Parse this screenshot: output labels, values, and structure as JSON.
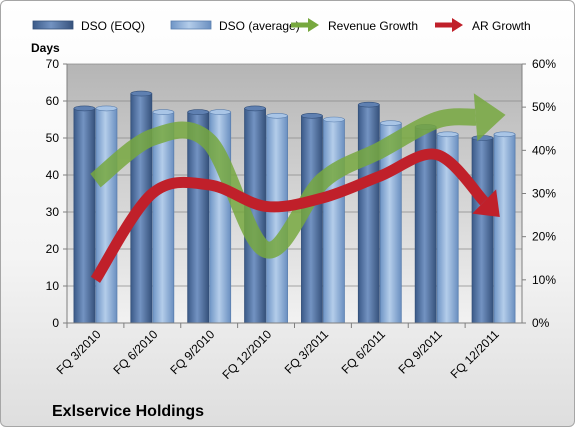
{
  "chart_data": {
    "type": "bar",
    "title": "",
    "company_label": "Exlservice Holdings",
    "ylabel_left": "Days",
    "ylim_left": [
      0,
      70
    ],
    "yticks_left": [
      0,
      10,
      20,
      30,
      40,
      50,
      60,
      70
    ],
    "ylim_right": [
      0,
      60
    ],
    "yticks_right": [
      0,
      10,
      20,
      30,
      40,
      50,
      60
    ],
    "right_tick_suffix": "%",
    "legend_position": "top",
    "categories": [
      "FQ 3/2010",
      "FQ 6/2010",
      "FQ 9/2010",
      "FQ 12/2010",
      "FQ 3/2011",
      "FQ 6/2011",
      "FQ 9/2011",
      "FQ 12/2011"
    ],
    "series": [
      {
        "name": "DSO (EOQ)",
        "type": "bar",
        "axis": "left",
        "color": "#4f6f9f",
        "values": [
          58,
          62,
          57,
          58,
          56,
          59,
          53,
          50
        ]
      },
      {
        "name": "DSO (average)",
        "type": "bar",
        "axis": "left",
        "color": "#8fb2dc",
        "values": [
          58,
          57,
          57,
          56,
          55,
          54,
          51,
          51
        ]
      },
      {
        "name": "Revenue Growth",
        "type": "line",
        "axis": "right",
        "color": "#77a83f",
        "values": [
          33,
          43,
          42,
          17,
          33,
          40,
          47,
          48
        ]
      },
      {
        "name": "AR Growth",
        "type": "line",
        "axis": "right",
        "color": "#c0202a",
        "values": [
          10,
          30,
          32,
          27,
          29,
          34,
          39,
          26
        ]
      }
    ]
  }
}
